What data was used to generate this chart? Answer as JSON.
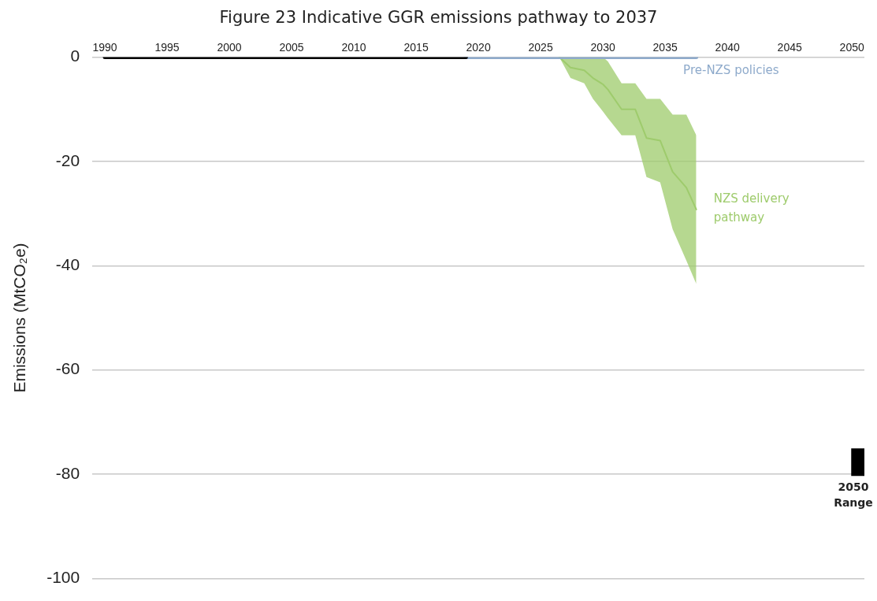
{
  "chart_data": {
    "type": "line",
    "title": "Figure 23 Indicative GGR emissions pathway to 2037",
    "ylabel": "Emissions (MtCO₂e)",
    "xlim": [
      1989,
      2051
    ],
    "xticks": [
      1990,
      1995,
      2000,
      2005,
      2010,
      2015,
      2020,
      2025,
      2030,
      2035,
      2040,
      2045,
      2050
    ],
    "ylim": [
      -100,
      0
    ],
    "yticks": [
      0,
      -20,
      -40,
      -60,
      -80,
      -100
    ],
    "grid": "y",
    "legend": false,
    "series": [
      {
        "type": "line",
        "color": "#000000",
        "x": [
          1990,
          2019
        ],
        "values": [
          0,
          0
        ]
      },
      {
        "type": "line",
        "name": "Pre-NZS policies",
        "color": "#8eaacb",
        "x": [
          2019,
          2037.5
        ],
        "values": [
          0,
          0
        ]
      },
      {
        "type": "line",
        "name": "NZS delivery pathway",
        "color": "#9ecb6c",
        "x": [
          2026.5,
          2027.4,
          2028.5,
          2029.2,
          2030,
          2030.4,
          2031.5,
          2032.6,
          2033.5,
          2034.6,
          2035.6,
          2036.7,
          2037.5
        ],
        "values": [
          0,
          -2,
          -2.5,
          -4,
          -5.2,
          -6.2,
          -10,
          -10,
          -15.5,
          -16,
          -22,
          -25,
          -29.2
        ],
        "lower": [
          0,
          -4,
          -5,
          -8,
          -10.4,
          -11.7,
          -15,
          -15,
          -23,
          -24,
          -33,
          -39,
          -43.5
        ],
        "upper": [
          0,
          0,
          0,
          0,
          0,
          -0.8,
          -5,
          -5,
          -8,
          -8,
          -11,
          -11,
          -15
        ]
      },
      {
        "type": "bar",
        "name": "2050 Range",
        "color": "#000000",
        "x": [
          2050.5
        ],
        "base": [
          -80.3
        ],
        "values": [
          5.2
        ]
      }
    ]
  }
}
